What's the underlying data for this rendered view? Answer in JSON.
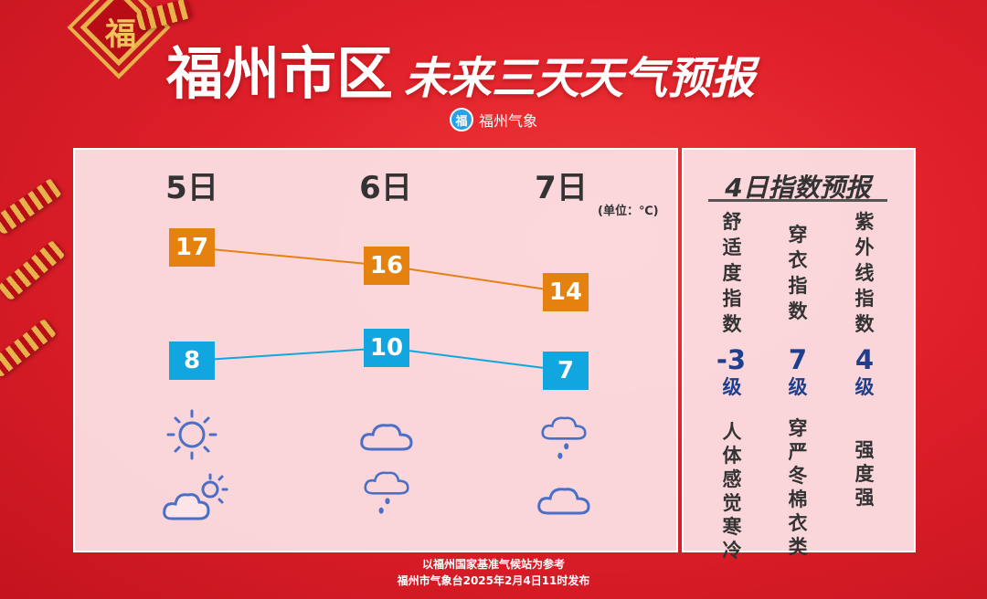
{
  "title": {
    "main": "福州市区",
    "sub": "未来三天天气预报"
  },
  "brand": {
    "logo_char": "福",
    "name": "福州气象"
  },
  "decoration": {
    "knot_char": "福"
  },
  "forecast": {
    "unit_label": "(单位：℃)",
    "days": [
      {
        "label": "5日",
        "high": "17",
        "low": "8",
        "weather_day": "sunny-icon",
        "weather_night": "cloudy-sun-icon"
      },
      {
        "label": "6日",
        "high": "16",
        "low": "10",
        "weather_day": "cloudy-icon",
        "weather_night": "light-rain-icon"
      },
      {
        "label": "7日",
        "high": "14",
        "low": "7",
        "weather_day": "light-rain-icon",
        "weather_night": "cloudy-icon"
      }
    ],
    "colors": {
      "high": "#e5820f",
      "low": "#12a6e0",
      "icon": "#4a6fc4"
    }
  },
  "index_panel": {
    "title": "4日指数预报",
    "items": [
      {
        "name": "舒适度指数",
        "value": "-3",
        "level": "级",
        "desc": "人体感觉寒冷"
      },
      {
        "name": "穿衣指数",
        "value": "7",
        "level": "级",
        "desc": "穿严冬棉衣类"
      },
      {
        "name": "紫外线指数",
        "value": "4",
        "level": "级",
        "desc": "强度强"
      }
    ]
  },
  "footer": {
    "line1": "以福州国家基准气候站为参考",
    "line2": "福州市气象台2025年2月4日11时发布"
  }
}
